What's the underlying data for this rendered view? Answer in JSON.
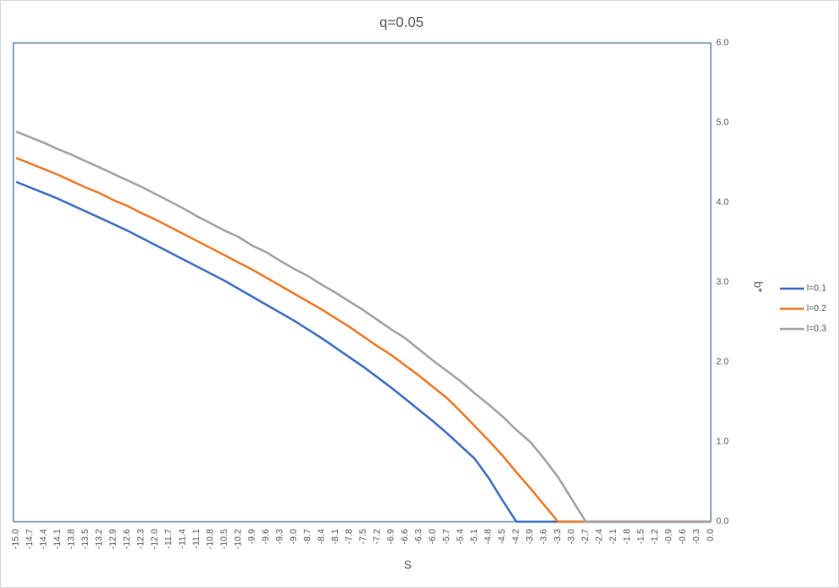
{
  "chart_data": {
    "type": "line",
    "title": "q=0.05",
    "x_label": "S",
    "y_label": "b*",
    "categories": [
      "-15.0",
      "-14.7",
      "-14.4",
      "-14.1",
      "-13.8",
      "-13.5",
      "-13.2",
      "-12.9",
      "-12.6",
      "-12.3",
      "-12.0",
      "-11.7",
      "-11.4",
      "-11.1",
      "-10.8",
      "-10.5",
      "-10.2",
      "-9.9",
      "-9.6",
      "-9.3",
      "-9.0",
      "-8.7",
      "-8.4",
      "-8.1",
      "-7.8",
      "-7.5",
      "-7.2",
      "-6.9",
      "-6.6",
      "-6.3",
      "-6.0",
      "-5.7",
      "-5.4",
      "-5.1",
      "-4.8",
      "-4.5",
      "-4.2",
      "-3.9",
      "-3.6",
      "-3.3",
      "-3.0",
      "-2.7",
      "-2.4",
      "-2.1",
      "-1.8",
      "-1.5",
      "-1.2",
      "-0.9",
      "-0.6",
      "-0.3",
      "0.0"
    ],
    "series": [
      {
        "name": "l=0.1",
        "color": "#4472c4",
        "values": [
          4.26,
          4.19,
          4.12,
          4.05,
          3.97,
          3.89,
          3.81,
          3.73,
          3.65,
          3.56,
          3.47,
          3.38,
          3.29,
          3.2,
          3.11,
          3.02,
          2.92,
          2.82,
          2.72,
          2.62,
          2.52,
          2.41,
          2.3,
          2.18,
          2.06,
          1.94,
          1.81,
          1.68,
          1.54,
          1.4,
          1.26,
          1.11,
          0.95,
          0.79,
          0.55,
          0.27,
          0,
          0,
          0,
          0,
          0,
          0,
          0,
          0,
          0,
          0,
          0,
          0,
          0,
          0,
          0
        ]
      },
      {
        "name": "l=0.2",
        "color": "#ed7d31",
        "values": [
          4.56,
          4.49,
          4.42,
          4.35,
          4.27,
          4.19,
          4.12,
          4.03,
          3.96,
          3.87,
          3.79,
          3.7,
          3.61,
          3.52,
          3.43,
          3.34,
          3.25,
          3.16,
          3.06,
          2.96,
          2.86,
          2.76,
          2.66,
          2.55,
          2.44,
          2.32,
          2.2,
          2.09,
          1.96,
          1.83,
          1.69,
          1.55,
          1.38,
          1.2,
          1.02,
          0.83,
          0.62,
          0.42,
          0.21,
          0,
          0,
          0,
          0,
          0,
          0,
          0,
          0,
          0,
          0,
          0,
          0
        ]
      },
      {
        "name": "l=0.3",
        "color": "#a5a5a5",
        "values": [
          4.89,
          4.82,
          4.75,
          4.67,
          4.6,
          4.52,
          4.44,
          4.36,
          4.28,
          4.2,
          4.11,
          4.02,
          3.93,
          3.83,
          3.74,
          3.65,
          3.57,
          3.46,
          3.38,
          3.27,
          3.17,
          3.08,
          2.97,
          2.87,
          2.76,
          2.65,
          2.53,
          2.41,
          2.3,
          2.16,
          2.02,
          1.89,
          1.76,
          1.61,
          1.47,
          1.32,
          1.15,
          1.0,
          0.79,
          0.56,
          0.28,
          0,
          0,
          0,
          0,
          0,
          0,
          0,
          0,
          0,
          0
        ]
      }
    ],
    "ylim": [
      0,
      6
    ],
    "yticks": [
      {
        "value": 0,
        "label": "0.0"
      },
      {
        "value": 1,
        "label": "1.0"
      },
      {
        "value": 2,
        "label": "2.0"
      },
      {
        "value": 3,
        "label": "3.0"
      },
      {
        "value": 4,
        "label": "4.0"
      },
      {
        "value": 5,
        "label": "5.0"
      },
      {
        "value": 6,
        "label": "6.0"
      }
    ],
    "y_axis_side": "right",
    "grid": false,
    "legend": "right"
  }
}
